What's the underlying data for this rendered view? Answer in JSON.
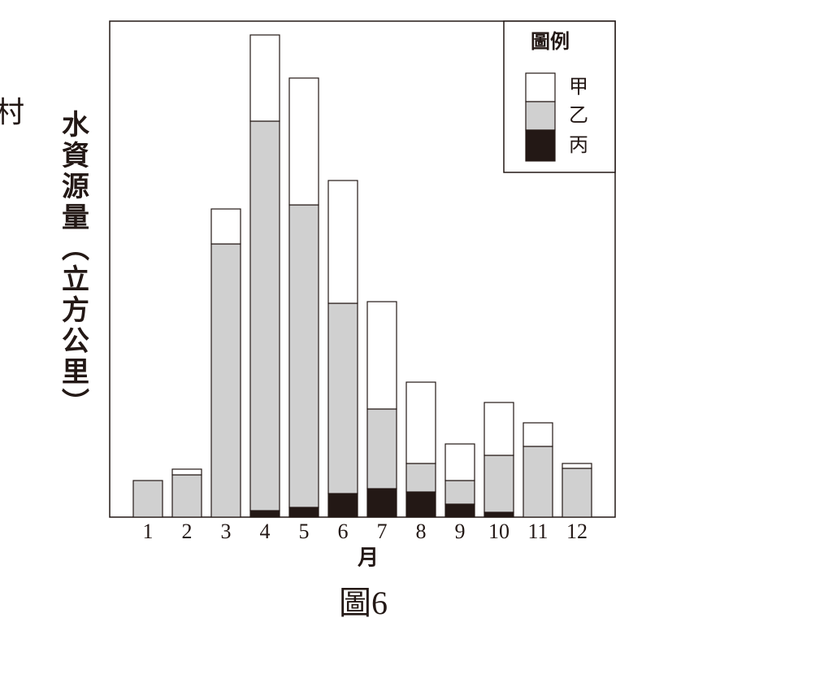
{
  "chart_data": {
    "type": "stacked-bar",
    "stray_text": "村",
    "title": "圖6",
    "y_label": "水資源量（立方公里）",
    "x_label": "月",
    "legend_title": "圖例",
    "legend": "top-right",
    "categories": [
      "1",
      "2",
      "3",
      "4",
      "5",
      "6",
      "7",
      "8",
      "9",
      "10",
      "11",
      "12"
    ],
    "series": [
      {
        "name": "丙",
        "color": "#231815",
        "values": [
          0,
          0,
          0,
          8,
          12,
          29,
          35,
          31,
          16,
          6,
          0,
          0
        ]
      },
      {
        "name": "乙",
        "color": "#d0d0d0",
        "values": [
          45,
          52,
          336,
          479,
          372,
          234,
          98,
          35,
          29,
          70,
          87,
          60
        ]
      },
      {
        "name": "甲",
        "color": "#ffffff",
        "values": [
          0,
          7,
          43,
          106,
          156,
          151,
          132,
          100,
          45,
          65,
          29,
          6
        ]
      }
    ],
    "ylim": [
      0,
      610
    ]
  }
}
